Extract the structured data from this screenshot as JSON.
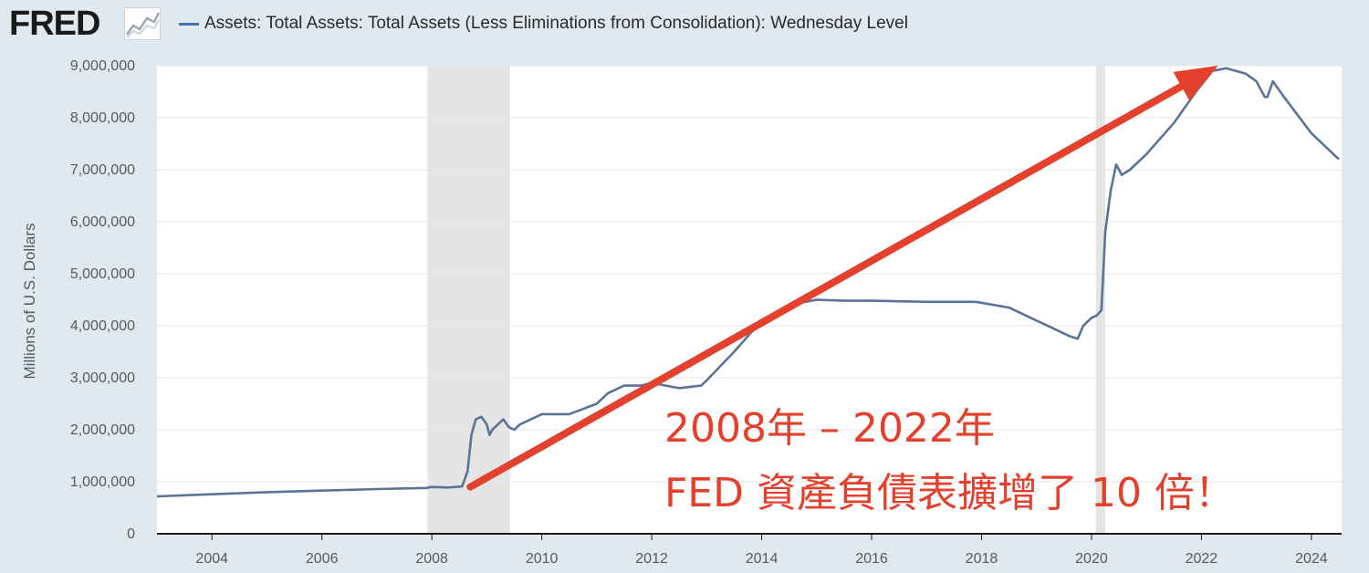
{
  "header": {
    "logo": "FRED",
    "logo_icon": "line-chart-icon",
    "legend_label": "Assets: Total Assets: Total Assets (Less Eliminations from Consolidation): Wednesday Level"
  },
  "colors": {
    "page_background": "#e1e9f0",
    "plot_background": "#ffffff",
    "series": "#5b7397",
    "recession_band": "#e5e5e5",
    "annotation": "#e3412d",
    "gridline": "#e6e6e6"
  },
  "chart_data": {
    "type": "line",
    "title": "",
    "xlabel": "",
    "ylabel": "Millions of U.S. Dollars",
    "xlim": [
      2003.0,
      2024.55
    ],
    "ylim": [
      0,
      9000000
    ],
    "grid": true,
    "x_ticks": [
      "2004",
      "2006",
      "2008",
      "2010",
      "2012",
      "2014",
      "2016",
      "2018",
      "2020",
      "2022",
      "2024"
    ],
    "y_ticks": [
      "0",
      "1,000,000",
      "2,000,000",
      "3,000,000",
      "4,000,000",
      "5,000,000",
      "6,000,000",
      "7,000,000",
      "8,000,000",
      "9,000,000"
    ],
    "recessions": [
      [
        2007.92,
        2009.42
      ],
      [
        2020.08,
        2020.25
      ]
    ],
    "series": [
      {
        "name": "Assets: Total Assets: Total Assets (Less Eliminations from Consolidation): Wednesday Level",
        "x": [
          2003.0,
          2004.0,
          2005.0,
          2006.0,
          2007.0,
          2007.9,
          2008.0,
          2008.3,
          2008.55,
          2008.65,
          2008.72,
          2008.8,
          2008.9,
          2009.0,
          2009.05,
          2009.1,
          2009.2,
          2009.3,
          2009.4,
          2009.5,
          2009.6,
          2009.7,
          2009.8,
          2010.0,
          2010.5,
          2011.0,
          2011.2,
          2011.5,
          2011.8,
          2012.0,
          2012.5,
          2012.9,
          2013.0,
          2013.5,
          2014.0,
          2014.5,
          2015.0,
          2015.5,
          2016.0,
          2017.0,
          2017.9,
          2018.5,
          2019.0,
          2019.6,
          2019.75,
          2019.85,
          2020.0,
          2020.1,
          2020.18,
          2020.25,
          2020.35,
          2020.45,
          2020.55,
          2020.7,
          2021.0,
          2021.5,
          2021.9,
          2022.2,
          2022.45,
          2022.8,
          2023.0,
          2023.15,
          2023.2,
          2023.3,
          2023.5,
          2024.0,
          2024.5
        ],
        "values": [
          720000,
          760000,
          800000,
          830000,
          860000,
          880000,
          900000,
          890000,
          910000,
          1200000,
          1900000,
          2200000,
          2250000,
          2100000,
          1900000,
          2000000,
          2100000,
          2200000,
          2050000,
          2000000,
          2100000,
          2150000,
          2200000,
          2300000,
          2300000,
          2500000,
          2700000,
          2850000,
          2850000,
          2900000,
          2800000,
          2850000,
          2950000,
          3500000,
          4100000,
          4400000,
          4500000,
          4480000,
          4480000,
          4460000,
          4460000,
          4350000,
          4100000,
          3800000,
          3750000,
          4000000,
          4150000,
          4200000,
          4300000,
          5800000,
          6600000,
          7100000,
          6900000,
          7000000,
          7300000,
          7900000,
          8500000,
          8900000,
          8950000,
          8850000,
          8700000,
          8400000,
          8400000,
          8700000,
          8400000,
          7700000,
          7200000
        ]
      }
    ],
    "annotation": {
      "line1": "2008年 – 2022年",
      "line2": "FED 資產負債表擴增了 10 倍！",
      "arrow_from": [
        2008.7,
        900000
      ],
      "arrow_to": [
        2022.3,
        9000000
      ]
    }
  }
}
